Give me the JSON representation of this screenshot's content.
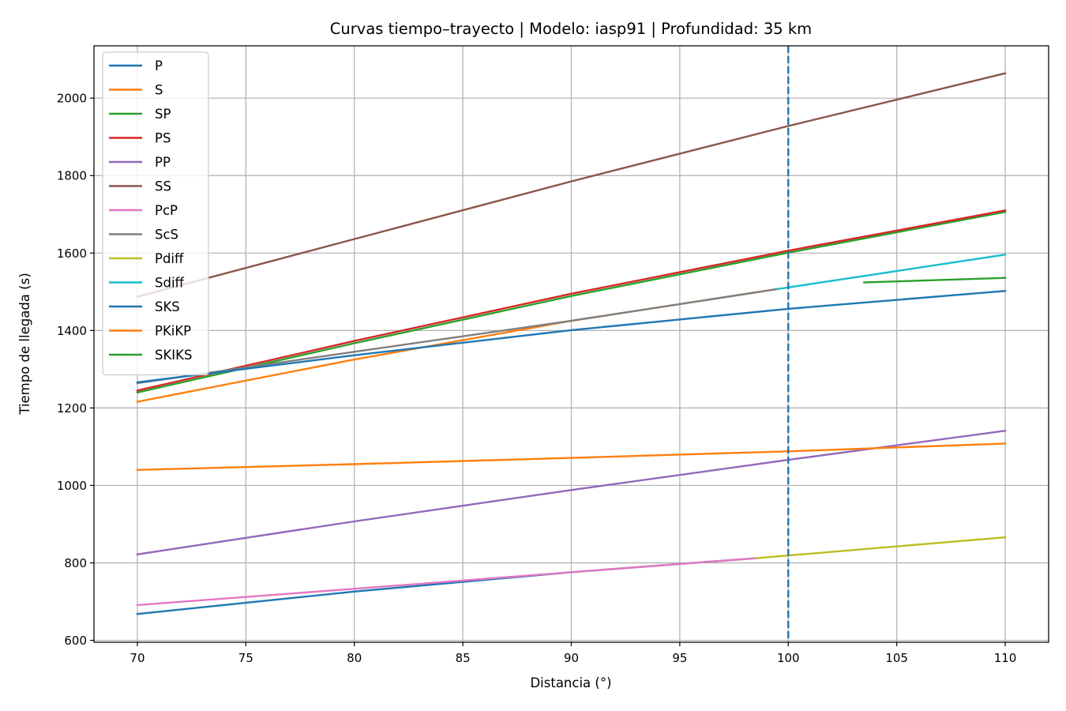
{
  "chart_data": {
    "type": "line",
    "title": "Curvas tiempo–trayecto | Modelo: iasp91 | Profundidad: 35 km",
    "xlabel": "Distancia (°)",
    "ylabel": "Tiempo de llegada (s)",
    "xlim": [
      68,
      112
    ],
    "ylim": [
      595,
      2135
    ],
    "xticks": [
      70,
      75,
      80,
      85,
      90,
      95,
      100,
      105,
      110
    ],
    "yticks": [
      600,
      800,
      1000,
      1200,
      1400,
      1600,
      1800,
      2000
    ],
    "grid": true,
    "legend_position": "upper-left",
    "vline": {
      "x": 100,
      "style": "dashed",
      "color": "#1f77b4"
    },
    "series": [
      {
        "name": "P",
        "color": "#1f77b4",
        "x": [
          70,
          80,
          90,
          98.5
        ],
        "y": [
          668,
          726,
          776,
          812
        ]
      },
      {
        "name": "S",
        "color": "#ff7f0e",
        "x": [
          70,
          80,
          90,
          99.5
        ],
        "y": [
          1216,
          1325,
          1425,
          1507
        ]
      },
      {
        "name": "SP",
        "color": "#2ca02c",
        "x": [
          70,
          80,
          90,
          100,
          110
        ],
        "y": [
          1240,
          1367,
          1489,
          1601,
          1706
        ]
      },
      {
        "name": "PS",
        "color": "#d62728",
        "x": [
          70,
          80,
          90,
          100,
          110
        ],
        "y": [
          1245,
          1373,
          1495,
          1606,
          1710
        ]
      },
      {
        "name": "PP",
        "color": "#9467bd",
        "x": [
          70,
          80,
          90,
          100,
          110
        ],
        "y": [
          822,
          907,
          988,
          1066,
          1141
        ]
      },
      {
        "name": "SS",
        "color": "#8c564b",
        "x": [
          70,
          80,
          90,
          100,
          110
        ],
        "y": [
          1487,
          1636,
          1785,
          1928,
          2064
        ]
      },
      {
        "name": "PcP",
        "color": "#e377c2",
        "x": [
          70,
          80,
          90,
          98.5
        ],
        "y": [
          691,
          733,
          776,
          812
        ]
      },
      {
        "name": "ScS",
        "color": "#7f7f7f",
        "x": [
          70,
          80,
          90,
          99.5
        ],
        "y": [
          1264,
          1345,
          1425,
          1507
        ]
      },
      {
        "name": "Pdiff",
        "color": "#bcbd22",
        "x": [
          98.5,
          110
        ],
        "y": [
          812,
          866
        ]
      },
      {
        "name": "Sdiff",
        "color": "#17becf",
        "x": [
          99.5,
          110
        ],
        "y": [
          1507,
          1596
        ]
      },
      {
        "name": "SKS",
        "color": "#1f77b4",
        "x": [
          70,
          80,
          90,
          100,
          110
        ],
        "y": [
          1266,
          1336,
          1401,
          1456,
          1502
        ]
      },
      {
        "name": "PKiKP",
        "color": "#ff7f0e",
        "x": [
          70,
          80,
          90,
          100,
          110
        ],
        "y": [
          1040,
          1055,
          1071,
          1088,
          1108
        ]
      },
      {
        "name": "SKIKS",
        "color": "#2ca02c",
        "x": [
          103.5,
          110
        ],
        "y": [
          1524,
          1536
        ]
      }
    ]
  }
}
